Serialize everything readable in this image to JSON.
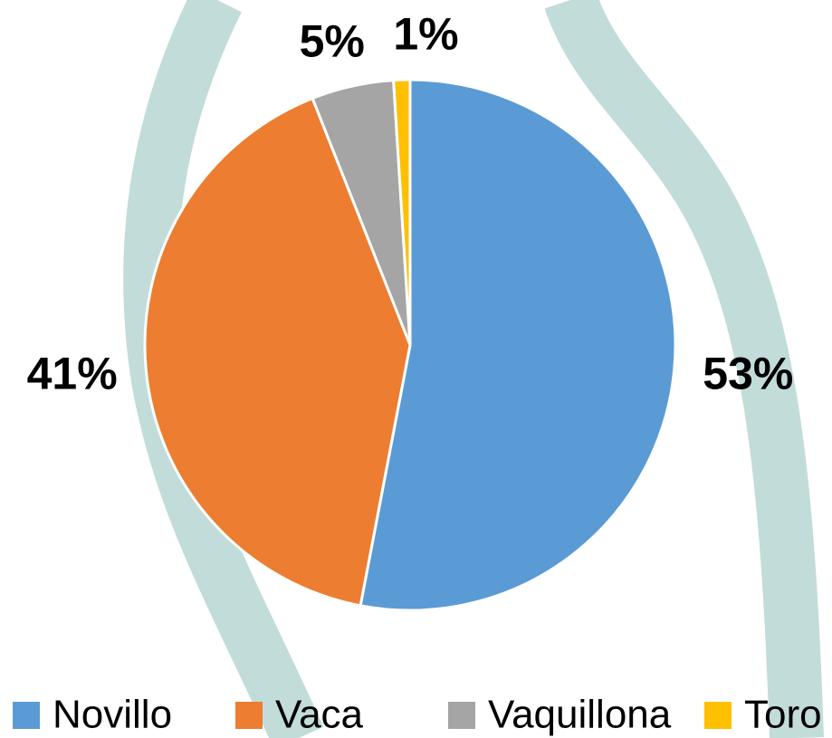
{
  "chart_data": {
    "type": "pie",
    "categories": [
      "Novillo",
      "Vaca",
      "Vaquillona",
      "Toro"
    ],
    "values": [
      53,
      41,
      5,
      1
    ],
    "value_labels": [
      "53%",
      "41%",
      "5%",
      "1%"
    ],
    "colors": [
      "#5b9bd5",
      "#ed7d31",
      "#a5a5a5",
      "#ffc000"
    ],
    "legend": "bottom"
  }
}
